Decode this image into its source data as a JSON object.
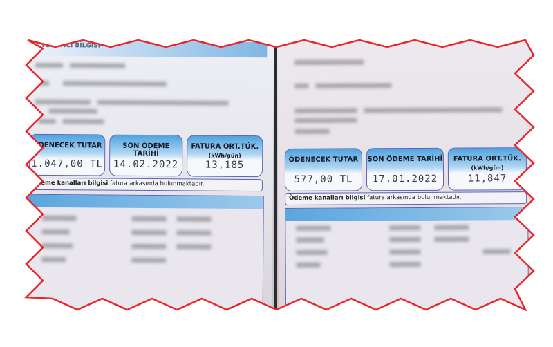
{
  "left_bill": {
    "section_title": "TÜKETİCİ BİLGİSİ",
    "amount_due_label": "ÖDENECEK TUTAR",
    "amount_due": "1.047,00 TL",
    "due_date_label": "SON ÖDEME TARİHİ",
    "due_date": "14.02.2022",
    "avg_consumption_label": "FATURA ORT.TÜK.",
    "avg_consumption_unit": "(kWh/gün)",
    "avg_consumption": "13,185",
    "payment_note_bold": "Ödeme kanalları bilgisi",
    "payment_note_rest": " fatura arkasında bulunmaktadır."
  },
  "right_bill": {
    "amount_due_label": "ÖDENECEK TUTAR",
    "amount_due": "577,00 TL",
    "due_date_label": "SON ÖDEME TARİHİ",
    "due_date": "17.01.2022",
    "avg_consumption_label": "FATURA ORT.TÜK.",
    "avg_consumption_unit": "(kWh/gün)",
    "avg_consumption": "11,847",
    "payment_note_bold": "Ödeme kanalları bilgisi",
    "payment_note_rest": " fatura arkasında bulunmaktadır."
  },
  "colors": {
    "torn_edge": "#e8262b",
    "box_border": "#5b63b5",
    "box_fill": "#4fa3df"
  }
}
